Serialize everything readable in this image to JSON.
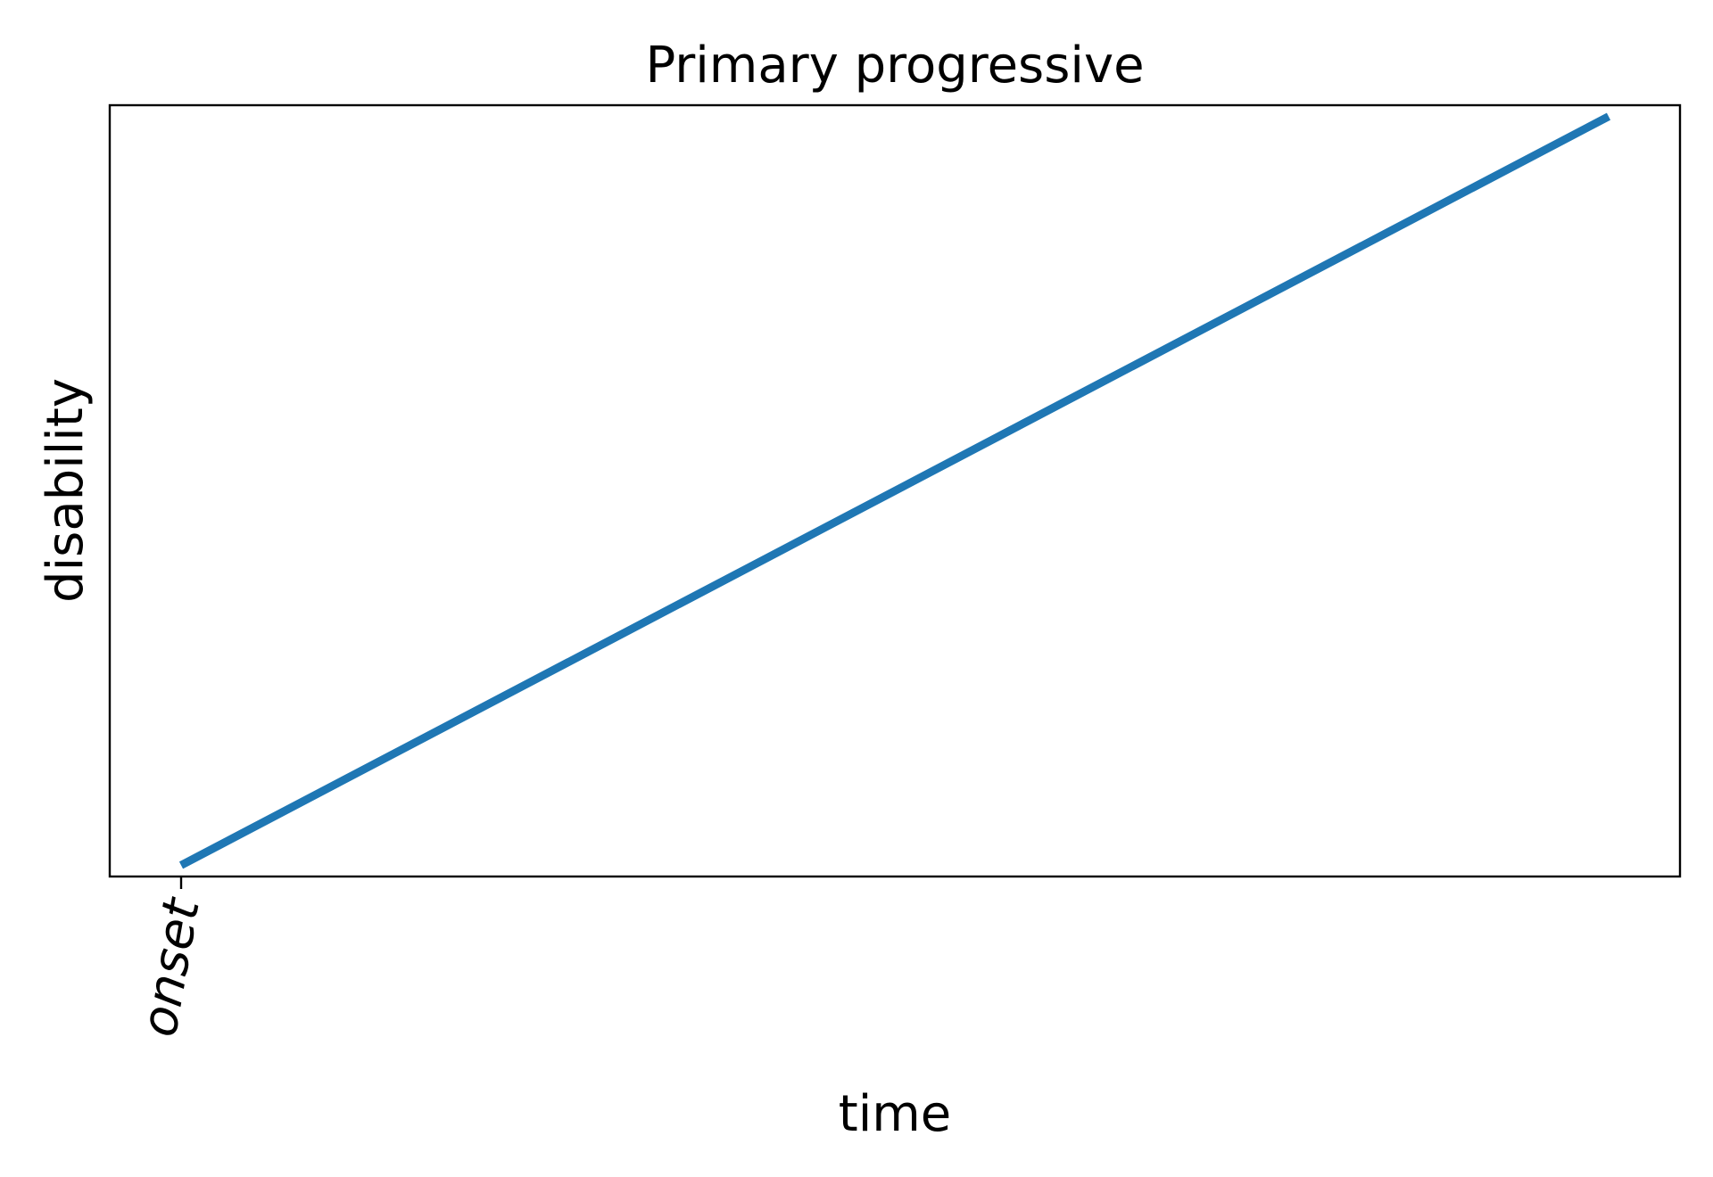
{
  "chart_data": {
    "type": "line",
    "title": "Primary progressive",
    "xlabel": "time",
    "ylabel": "disability",
    "x_ticks": [
      {
        "value": 0,
        "label": "onset"
      }
    ],
    "xlim": [
      -0.05,
      1.05
    ],
    "ylim": [
      -0.015,
      1.015
    ],
    "grid": false,
    "legend": "none",
    "series": [
      {
        "color": "#1f77b4",
        "x": [
          0,
          1
        ],
        "y": [
          0,
          1
        ]
      }
    ]
  }
}
